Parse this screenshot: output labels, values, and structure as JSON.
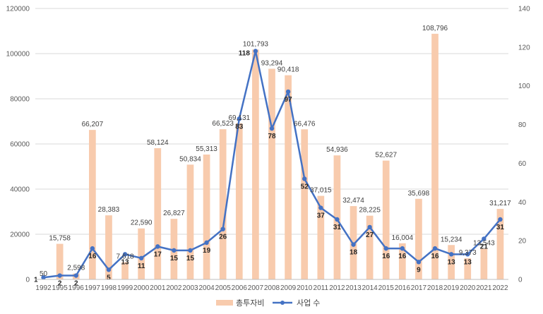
{
  "chart_data": {
    "type": "bar",
    "categories": [
      "1992",
      "1995",
      "1996",
      "1997",
      "1998",
      "1999",
      "2000",
      "2001",
      "2002",
      "2003",
      "2004",
      "2005",
      "2006",
      "2007",
      "2008",
      "2009",
      "2010",
      "2011",
      "2012",
      "2013",
      "2014",
      "2015",
      "2016",
      "2017",
      "2018",
      "2019",
      "2020",
      "2021",
      "2022"
    ],
    "series": [
      {
        "name": "총투자비",
        "type": "bar",
        "axis": "left",
        "color": "#F8CBAD",
        "values": [
          50,
          15758,
          2598,
          66207,
          28383,
          7618,
          22590,
          58124,
          26827,
          50834,
          55313,
          66523,
          69131,
          101793,
          93294,
          90418,
          66476,
          37015,
          54936,
          32474,
          28225,
          52627,
          16004,
          35698,
          108796,
          15234,
          9373,
          13543,
          31217
        ],
        "labels": [
          "50",
          "15,758",
          "2,598",
          "66,207",
          "28,383",
          "7,618",
          "22,590",
          "58,124",
          "26,827",
          "50,834",
          "55,313",
          "66,523",
          "69,131",
          "101,793",
          "93,294",
          "90,418",
          "66,476",
          "37,015",
          "54,936",
          "32,474",
          "28,225",
          "52,627",
          "16,004",
          "35,698",
          "108,796",
          "15,234",
          "9,373",
          "13,543",
          "31,217"
        ]
      },
      {
        "name": "사업 수",
        "type": "line",
        "axis": "right",
        "color": "#4472C4",
        "values": [
          1,
          2,
          2,
          16,
          5,
          13,
          11,
          17,
          15,
          15,
          19,
          26,
          83,
          118,
          78,
          97,
          52,
          37,
          31,
          18,
          27,
          16,
          16,
          9,
          16,
          13,
          13,
          21,
          31
        ],
        "labels": [
          "1",
          "2",
          "2",
          "16",
          "5",
          "13",
          "11",
          "17",
          "15",
          "15",
          "19",
          "26",
          "83",
          "118",
          "78",
          "97",
          "52",
          "37",
          "31",
          "18",
          "27",
          "16",
          "16",
          "9",
          "16",
          "13",
          "13",
          "21",
          "31"
        ]
      }
    ],
    "y_left": {
      "min": 0,
      "max": 120000,
      "ticks": [
        "0",
        "20000",
        "40000",
        "60000",
        "80000",
        "100000",
        "120000"
      ]
    },
    "y_right": {
      "min": 0,
      "max": 140,
      "ticks": [
        "0",
        "20",
        "40",
        "60",
        "80",
        "100",
        "120",
        "140"
      ]
    },
    "grid": true,
    "legend": "bottom"
  }
}
